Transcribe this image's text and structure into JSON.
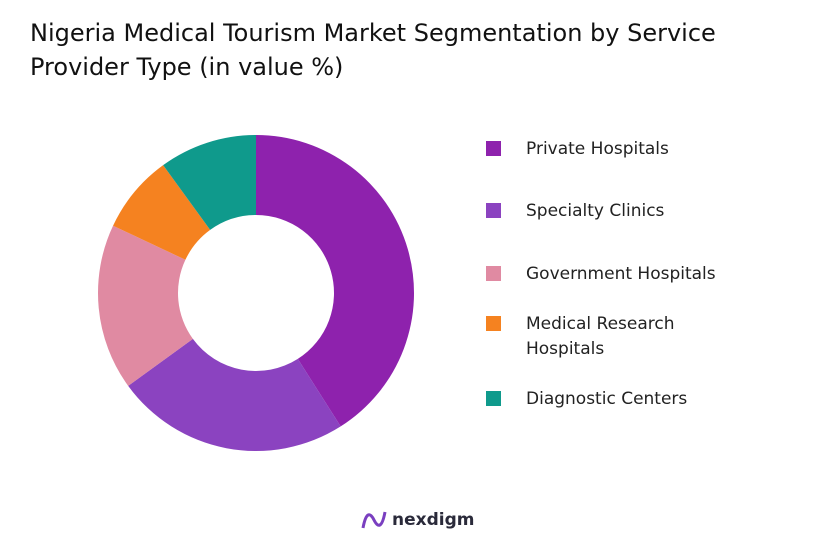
{
  "chart_data": {
    "type": "donut",
    "title": "Nigeria Medical Tourism Market Segmentation by Service Provider Type (in value %)",
    "categories": [
      "Private Hospitals",
      "Specialty Clinics",
      "Government Hospitals",
      "Medical Research Hospitals",
      "Diagnostic Centers"
    ],
    "values": [
      41,
      24,
      17,
      8,
      10
    ],
    "colors": [
      "#8e22ad",
      "#8b43c0",
      "#e08aa2",
      "#f58220",
      "#0f9a8c"
    ],
    "legend": "right",
    "brand": "nexdigm"
  }
}
